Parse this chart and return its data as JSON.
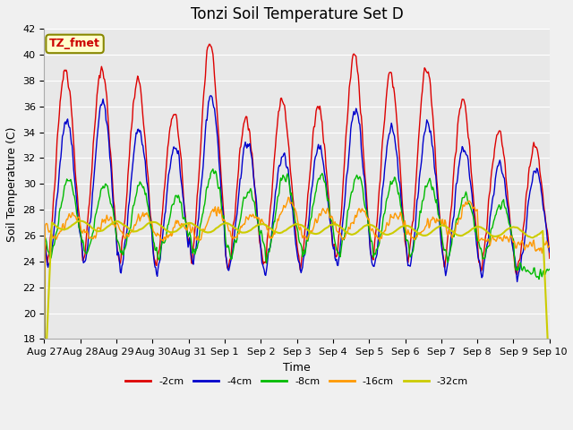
{
  "title": "Tonzi Soil Temperature Set D",
  "xlabel": "Time",
  "ylabel": "Soil Temperature (C)",
  "ylim": [
    18,
    42
  ],
  "yticks": [
    18,
    20,
    22,
    24,
    26,
    28,
    30,
    32,
    34,
    36,
    38,
    40,
    42
  ],
  "x_labels": [
    "Aug 27",
    "Aug 28",
    "Aug 29",
    "Aug 30",
    "Aug 31",
    "Sep 1",
    "Sep 2",
    "Sep 3",
    "Sep 4",
    "Sep 5",
    "Sep 6",
    "Sep 7",
    "Sep 8",
    "Sep 9",
    "Sep 10"
  ],
  "annotation_text": "TZ_fmet",
  "annotation_color": "#cc0000",
  "annotation_bg": "#ffffcc",
  "annotation_border": "#888800",
  "colors": {
    "-2cm": "#dd0000",
    "-4cm": "#0000cc",
    "-8cm": "#00bb00",
    "-16cm": "#ff9900",
    "-32cm": "#cccc00"
  },
  "legend_labels": [
    "-2cm",
    "-4cm",
    "-8cm",
    "-16cm",
    "-32cm"
  ],
  "plot_bg_color": "#e8e8e8",
  "fig_bg_color": "#f0f0f0",
  "grid_color": "#ffffff",
  "title_fontsize": 12,
  "label_fontsize": 9,
  "tick_fontsize": 8
}
